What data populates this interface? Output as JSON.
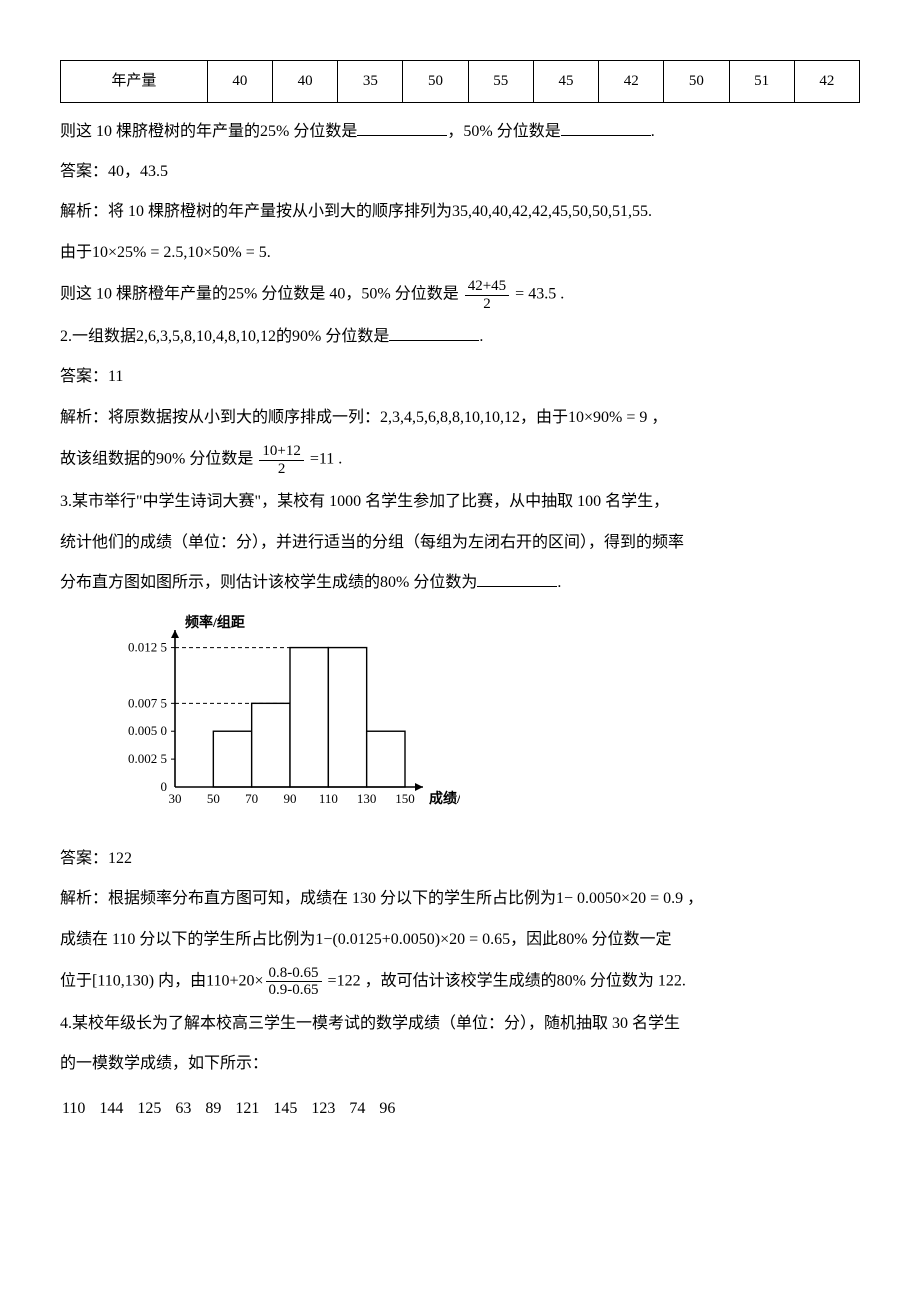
{
  "table": {
    "row_label": "年产量",
    "cells": [
      "40",
      "40",
      "35",
      "50",
      "55",
      "45",
      "42",
      "50",
      "51",
      "42"
    ]
  },
  "q1": {
    "line1_a": "则这 10 棵脐橙树的年产量的",
    "line1_b": " 分位数是",
    "line1_c": "，",
    "line1_d": " 分位数是",
    "line1_e": ".",
    "p25": "25%",
    "p50": "50%",
    "answer_label": "答案：40，43.5",
    "expl_a": "解析：将 10 棵脐橙树的年产量按从小到大的顺序排列为",
    "sorted": "35,40,40,42,42,45,50,50,51,55",
    "dot": ".",
    "calc_a": "由于",
    "calc_eq": "10×25% = 2.5,10×50% = 5",
    "res_a": "则这 10 棵脐橙年产量的",
    "res_b": " 分位数是 40，",
    "res_c": " 分位数是 ",
    "frac_num": "42+45",
    "frac_den": "2",
    "eq_end": " = 43.5 ."
  },
  "q2": {
    "stem_a": "2.一组数据",
    "data": "2,6,3,5,8,10,4,8,10,12",
    "stem_b": "的",
    "p90": "90%",
    "stem_c": " 分位数是",
    "dot": ".",
    "answer": "答案：11",
    "expl_a": "解析：将原数据按从小到大的顺序排成一列：",
    "sorted": "2,3,4,5,6,8,8,10,10,12",
    "expl_b": "，由于",
    "calc": "10×90% = 9",
    "comma": " ，",
    "res_a": "故该组数据的",
    "res_b": " 分位数是 ",
    "frac_num": "10+12",
    "frac_den": "2",
    "eq_end": " =11 ."
  },
  "q3": {
    "stem1": "3.某市举行\"中学生诗词大赛\"，某校有 1000 名学生参加了比赛，从中抽取 100 名学生，",
    "stem2": "统计他们的成绩（单位：分），并进行适当的分组（每组为左闭右开的区间），得到的频率",
    "stem3a": "分布直方图如图所示，则估计该校学生成绩的",
    "p80": "80%",
    "stem3b": " 分位数为",
    "dot": ".",
    "hist": {
      "ylabel": "频率/组距",
      "xlabel": "成绩/分",
      "yticks": [
        "0.012 5",
        "0.007 5",
        "0.005 0",
        "0.002 5",
        "0"
      ],
      "ytick_vals": [
        0.0125,
        0.0075,
        0.005,
        0.0025,
        0
      ],
      "xticks": [
        "30",
        "50",
        "70",
        "90",
        "110",
        "130",
        "150"
      ],
      "bars": [
        {
          "x": 50,
          "h": 0.005
        },
        {
          "x": 70,
          "h": 0.0075
        },
        {
          "x": 90,
          "h": 0.0125
        },
        {
          "x": 110,
          "h": 0.0125
        },
        {
          "x": 130,
          "h": 0.005
        }
      ],
      "colors": {
        "axis": "#000",
        "bar_stroke": "#000",
        "bar_fill": "#fff",
        "dash": "#000"
      }
    },
    "answer": "答案：122",
    "expl1a": "解析：根据频率分布直方图可知，成绩在 130 分以下的学生所占比例为",
    "expl1b": "1− 0.0050×20 = 0.9",
    "comma": " ，",
    "expl2a": "成绩在 110 分以下的学生所占比例为",
    "expl2b": "1−(0.0125+0.0050)×20 = 0.65",
    "expl2c": "，因此",
    "expl2d": " 分位数一定",
    "expl3a": "位于",
    "interval": "[110,130)",
    "expl3b": " 内，由",
    "calc_lead": "110+20×",
    "frac_num": "0.8-0.65",
    "frac_den": "0.9-0.65",
    "calc_tail": " =122",
    "expl3c": " ，故可估计该校学生成绩的",
    "expl3d": " 分位数为 122."
  },
  "q4": {
    "stem1": "4.某校年级长为了解本校高三学生一模考试的数学成绩（单位：分），随机抽取 30 名学生",
    "stem2": "的一模数学成绩，如下所示：",
    "scores_row": [
      "110",
      "144",
      "125",
      "63",
      "89",
      "121",
      "145",
      "123",
      "74",
      "96"
    ]
  }
}
